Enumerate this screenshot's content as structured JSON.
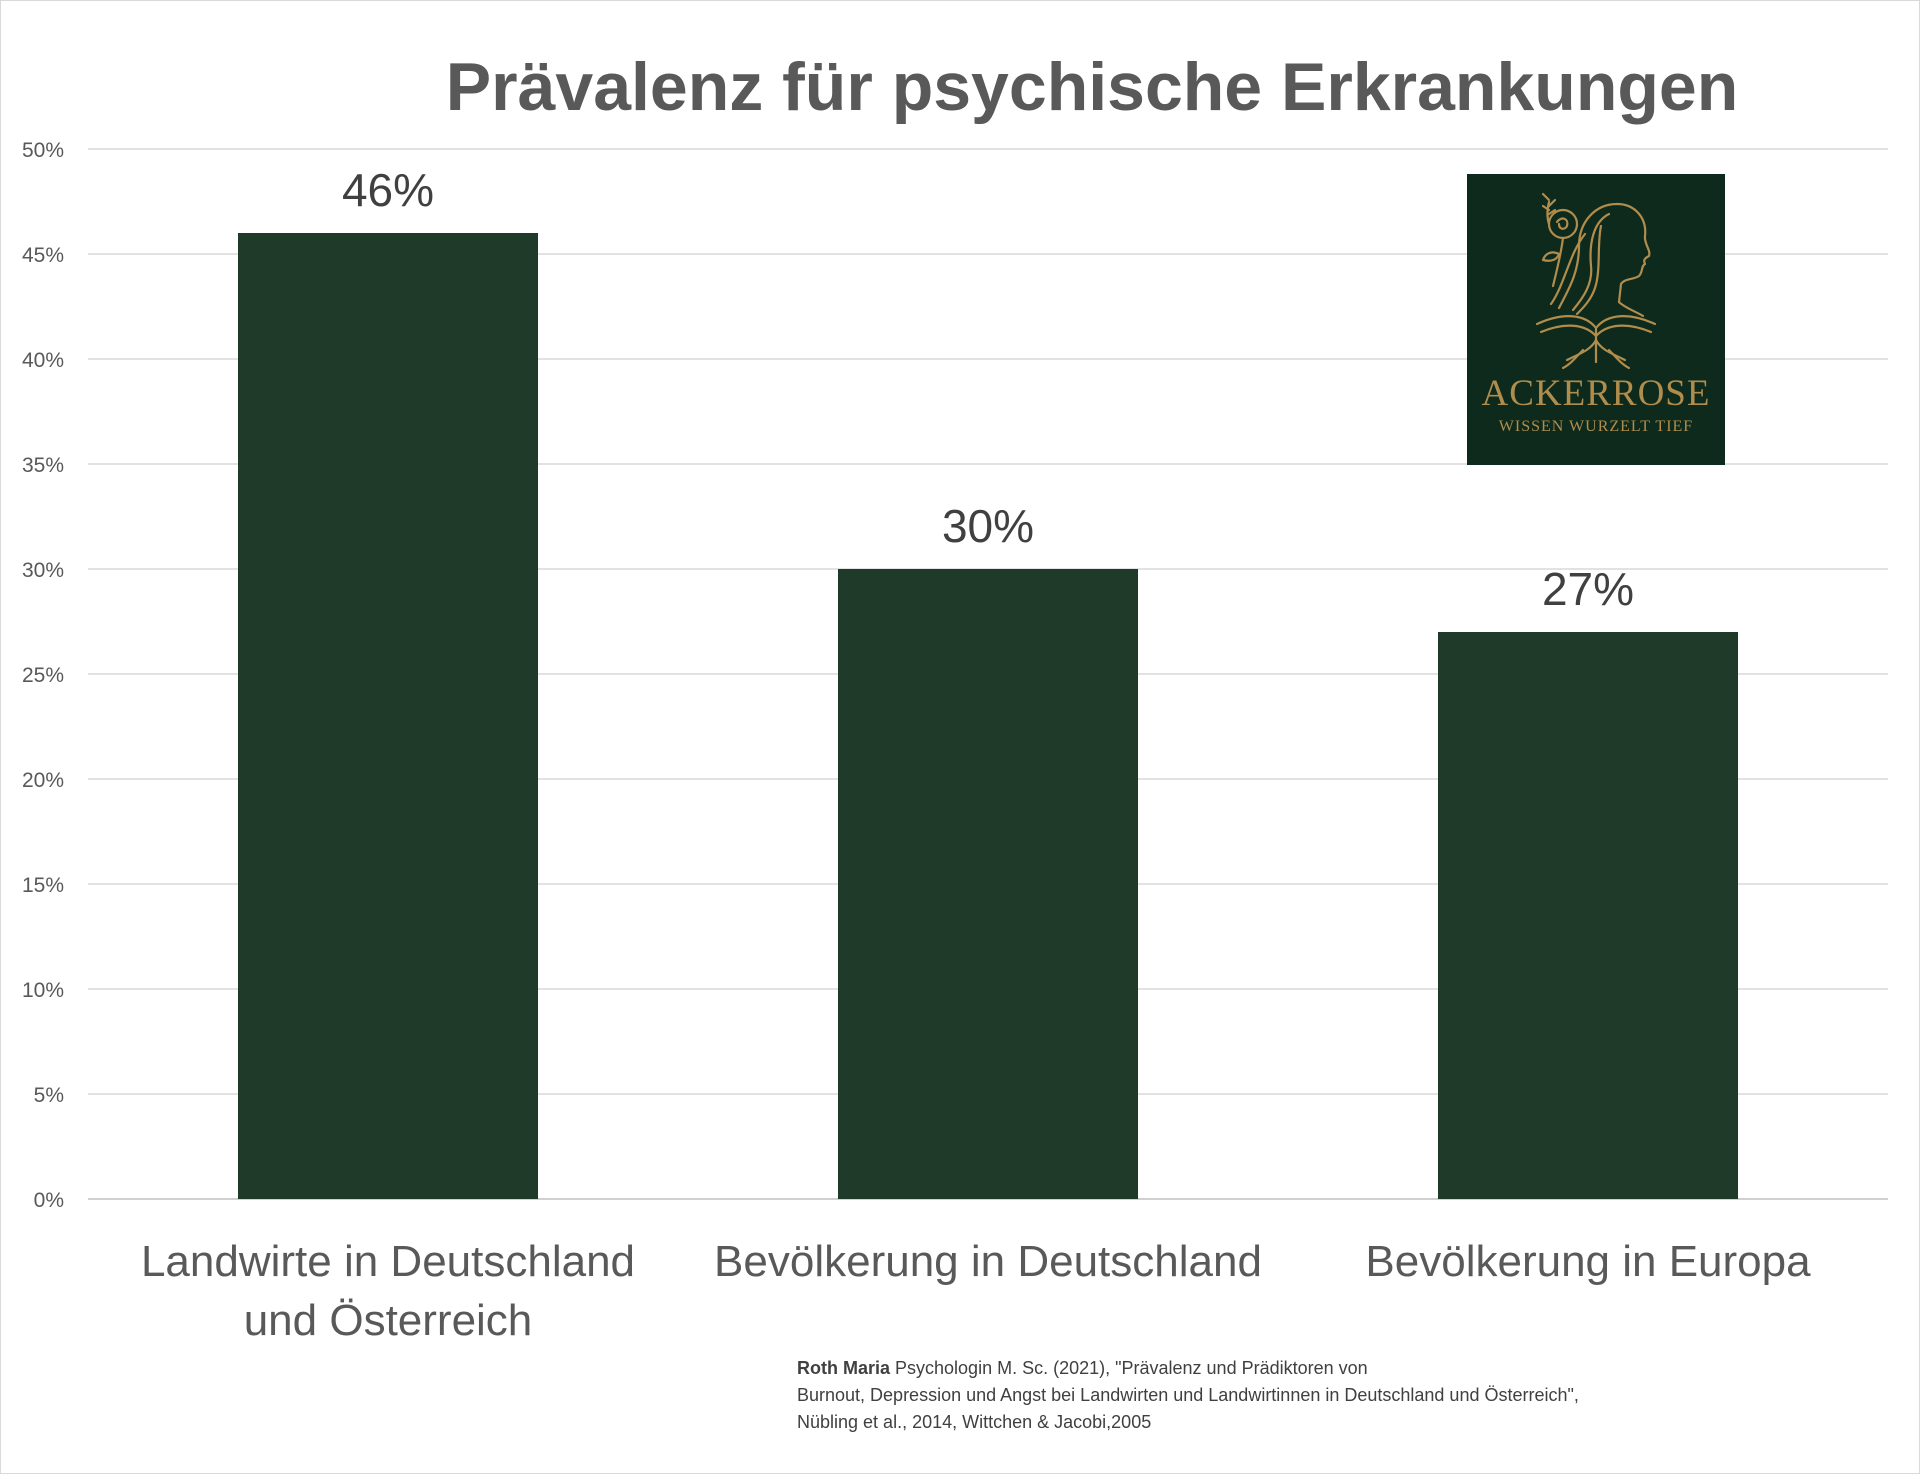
{
  "chart_data": {
    "type": "bar",
    "title": "Prävalenz für psychische Erkrankungen",
    "categories": [
      [
        "Landwirte in Deutschland",
        "und Österreich"
      ],
      [
        "Bevölkerung in Deutschland"
      ],
      [
        "Bevölkerung in Europa"
      ]
    ],
    "values": [
      46,
      30,
      27
    ],
    "data_labels": [
      "46%",
      "30%",
      "27%"
    ],
    "y_ticks": [
      "0%",
      "5%",
      "10%",
      "15%",
      "20%",
      "25%",
      "30%",
      "35%",
      "40%",
      "45%",
      "50%"
    ],
    "ylim": [
      0,
      50
    ],
    "grid": true,
    "legend": "none",
    "bar_color": "#203a2a"
  },
  "logo": {
    "name": "ACKERROSE",
    "tagline": "WISSEN WURZELT TIEF",
    "background": "#0e2a1c",
    "accent": "#b08d4c"
  },
  "source": {
    "author": "Roth Maria",
    "line1": " Psychologin M. Sc. (2021), \"Prävalenz und Prädiktoren von",
    "line2": "Burnout, Depression und Angst bei Landwirten und Landwirtinnen in Deutschland und Österreich\",",
    "line3": "Nübling et al., 2014, Wittchen & Jacobi,2005"
  }
}
